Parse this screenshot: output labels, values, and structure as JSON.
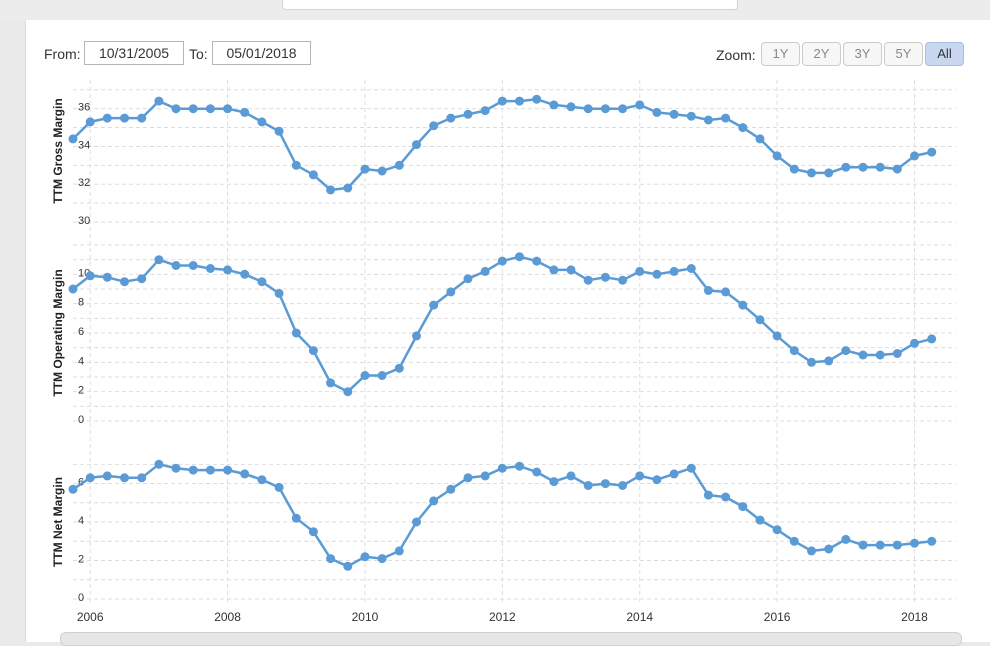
{
  "range": {
    "from_label": "From:",
    "from_value": "10/31/2005",
    "to_label": "To:",
    "to_value": "05/01/2018"
  },
  "zoom": {
    "label": "Zoom:",
    "buttons": [
      "1Y",
      "2Y",
      "3Y",
      "5Y",
      "All"
    ],
    "active": "All"
  },
  "colors": {
    "series": "#5b9bd5",
    "grid": "#dddddd"
  },
  "chart_data": {
    "type": "line",
    "x_ticks": [
      "2006",
      "2008",
      "2010",
      "2012",
      "2014",
      "2016",
      "2018"
    ],
    "x_range": [
      2005.75,
      2018.4
    ],
    "x": [
      2005.75,
      2006.0,
      2006.25,
      2006.5,
      2006.75,
      2007.0,
      2007.25,
      2007.5,
      2007.75,
      2008.0,
      2008.25,
      2008.5,
      2008.75,
      2009.0,
      2009.25,
      2009.5,
      2009.75,
      2010.0,
      2010.25,
      2010.5,
      2010.75,
      2011.0,
      2011.25,
      2011.5,
      2011.75,
      2012.0,
      2012.25,
      2012.5,
      2012.75,
      2013.0,
      2013.25,
      2013.5,
      2013.75,
      2014.0,
      2014.25,
      2014.5,
      2014.75,
      2015.0,
      2015.25,
      2015.5,
      2015.75,
      2016.0,
      2016.25,
      2016.5,
      2016.75,
      2017.0,
      2017.25,
      2017.5,
      2017.75,
      2018.0,
      2018.25
    ],
    "panels": [
      {
        "ylabel": "TTM Gross Margin",
        "yticks": [
          30,
          32,
          34,
          36
        ],
        "ylim": [
          30,
          37.2
        ],
        "values": [
          34.4,
          35.3,
          35.5,
          35.5,
          35.5,
          36.4,
          36.0,
          36.0,
          36.0,
          36.0,
          35.8,
          35.3,
          34.8,
          33.0,
          32.5,
          31.7,
          31.8,
          32.8,
          32.7,
          33.0,
          34.1,
          35.1,
          35.5,
          35.7,
          35.9,
          36.4,
          36.4,
          36.5,
          36.2,
          36.1,
          36.0,
          36.0,
          36.0,
          36.2,
          35.8,
          35.7,
          35.6,
          35.4,
          35.5,
          35.0,
          34.4,
          33.5,
          32.8,
          32.6,
          32.6,
          32.9,
          32.9,
          32.9,
          32.8,
          33.5,
          33.7
        ]
      },
      {
        "ylabel": "TTM Operating Margin",
        "yticks": [
          0,
          2,
          4,
          6,
          8,
          10
        ],
        "ylim": [
          0,
          12
        ],
        "values": [
          9.0,
          9.9,
          9.8,
          9.5,
          9.7,
          11.0,
          10.6,
          10.6,
          10.4,
          10.3,
          10.0,
          9.5,
          8.7,
          6.0,
          4.8,
          2.6,
          2.0,
          3.1,
          3.1,
          3.6,
          5.8,
          7.9,
          8.8,
          9.7,
          10.2,
          10.9,
          11.2,
          10.9,
          10.3,
          10.3,
          9.6,
          9.8,
          9.6,
          10.2,
          10.0,
          10.2,
          10.4,
          8.9,
          8.8,
          7.9,
          6.9,
          5.8,
          4.8,
          4.0,
          4.1,
          4.8,
          4.5,
          4.5,
          4.6,
          5.3,
          5.6
        ]
      },
      {
        "ylabel": "TTM Net Margin",
        "yticks": [
          0,
          2,
          4,
          6
        ],
        "ylim": [
          0,
          7.9
        ],
        "values": [
          5.7,
          6.3,
          6.4,
          6.3,
          6.3,
          7.0,
          6.8,
          6.7,
          6.7,
          6.7,
          6.5,
          6.2,
          5.8,
          4.2,
          3.5,
          2.1,
          1.7,
          2.2,
          2.1,
          2.5,
          4.0,
          5.1,
          5.7,
          6.3,
          6.4,
          6.8,
          6.9,
          6.6,
          6.1,
          6.4,
          5.9,
          6.0,
          5.9,
          6.4,
          6.2,
          6.5,
          6.8,
          5.4,
          5.3,
          4.8,
          4.1,
          3.6,
          3.0,
          2.5,
          2.6,
          3.1,
          2.8,
          2.8,
          2.8,
          2.9,
          3.0
        ]
      }
    ]
  }
}
